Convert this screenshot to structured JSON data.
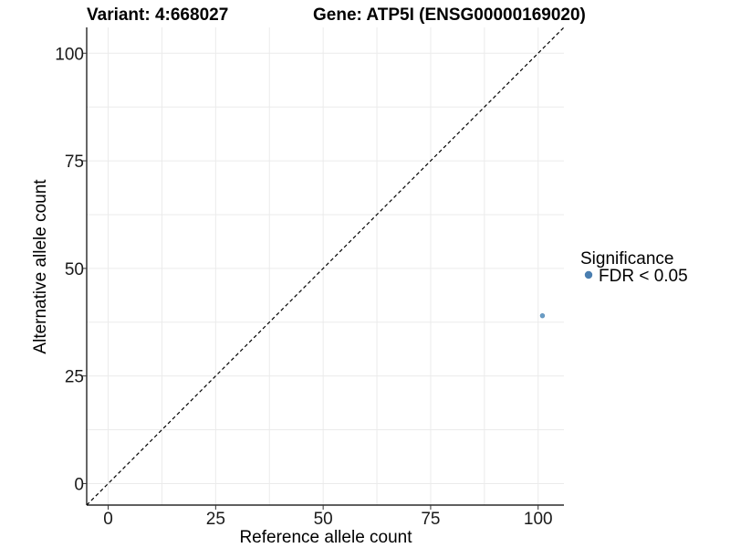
{
  "chart_data": {
    "type": "scatter",
    "title_left": "Variant: 4:668027",
    "title_right": "Gene: ATP5I (ENSG00000169020)",
    "xlabel": "Reference allele count",
    "ylabel": "Alternative allele count",
    "xlim": [
      -5,
      106
    ],
    "ylim": [
      -5,
      106
    ],
    "xticks": [
      0,
      25,
      50,
      75,
      100
    ],
    "yticks": [
      0,
      25,
      50,
      75,
      100
    ],
    "grid": true,
    "reference_line": "y = x (dashed)",
    "legend": {
      "title": "Significance",
      "placement": "right",
      "entries": [
        {
          "label": "FDR < 0.05",
          "color": "#4a7eb0"
        }
      ]
    },
    "series": [
      {
        "name": "FDR < 0.05",
        "color": "#6a9ec6",
        "points": [
          {
            "x": 101,
            "y": 39
          }
        ]
      }
    ]
  }
}
